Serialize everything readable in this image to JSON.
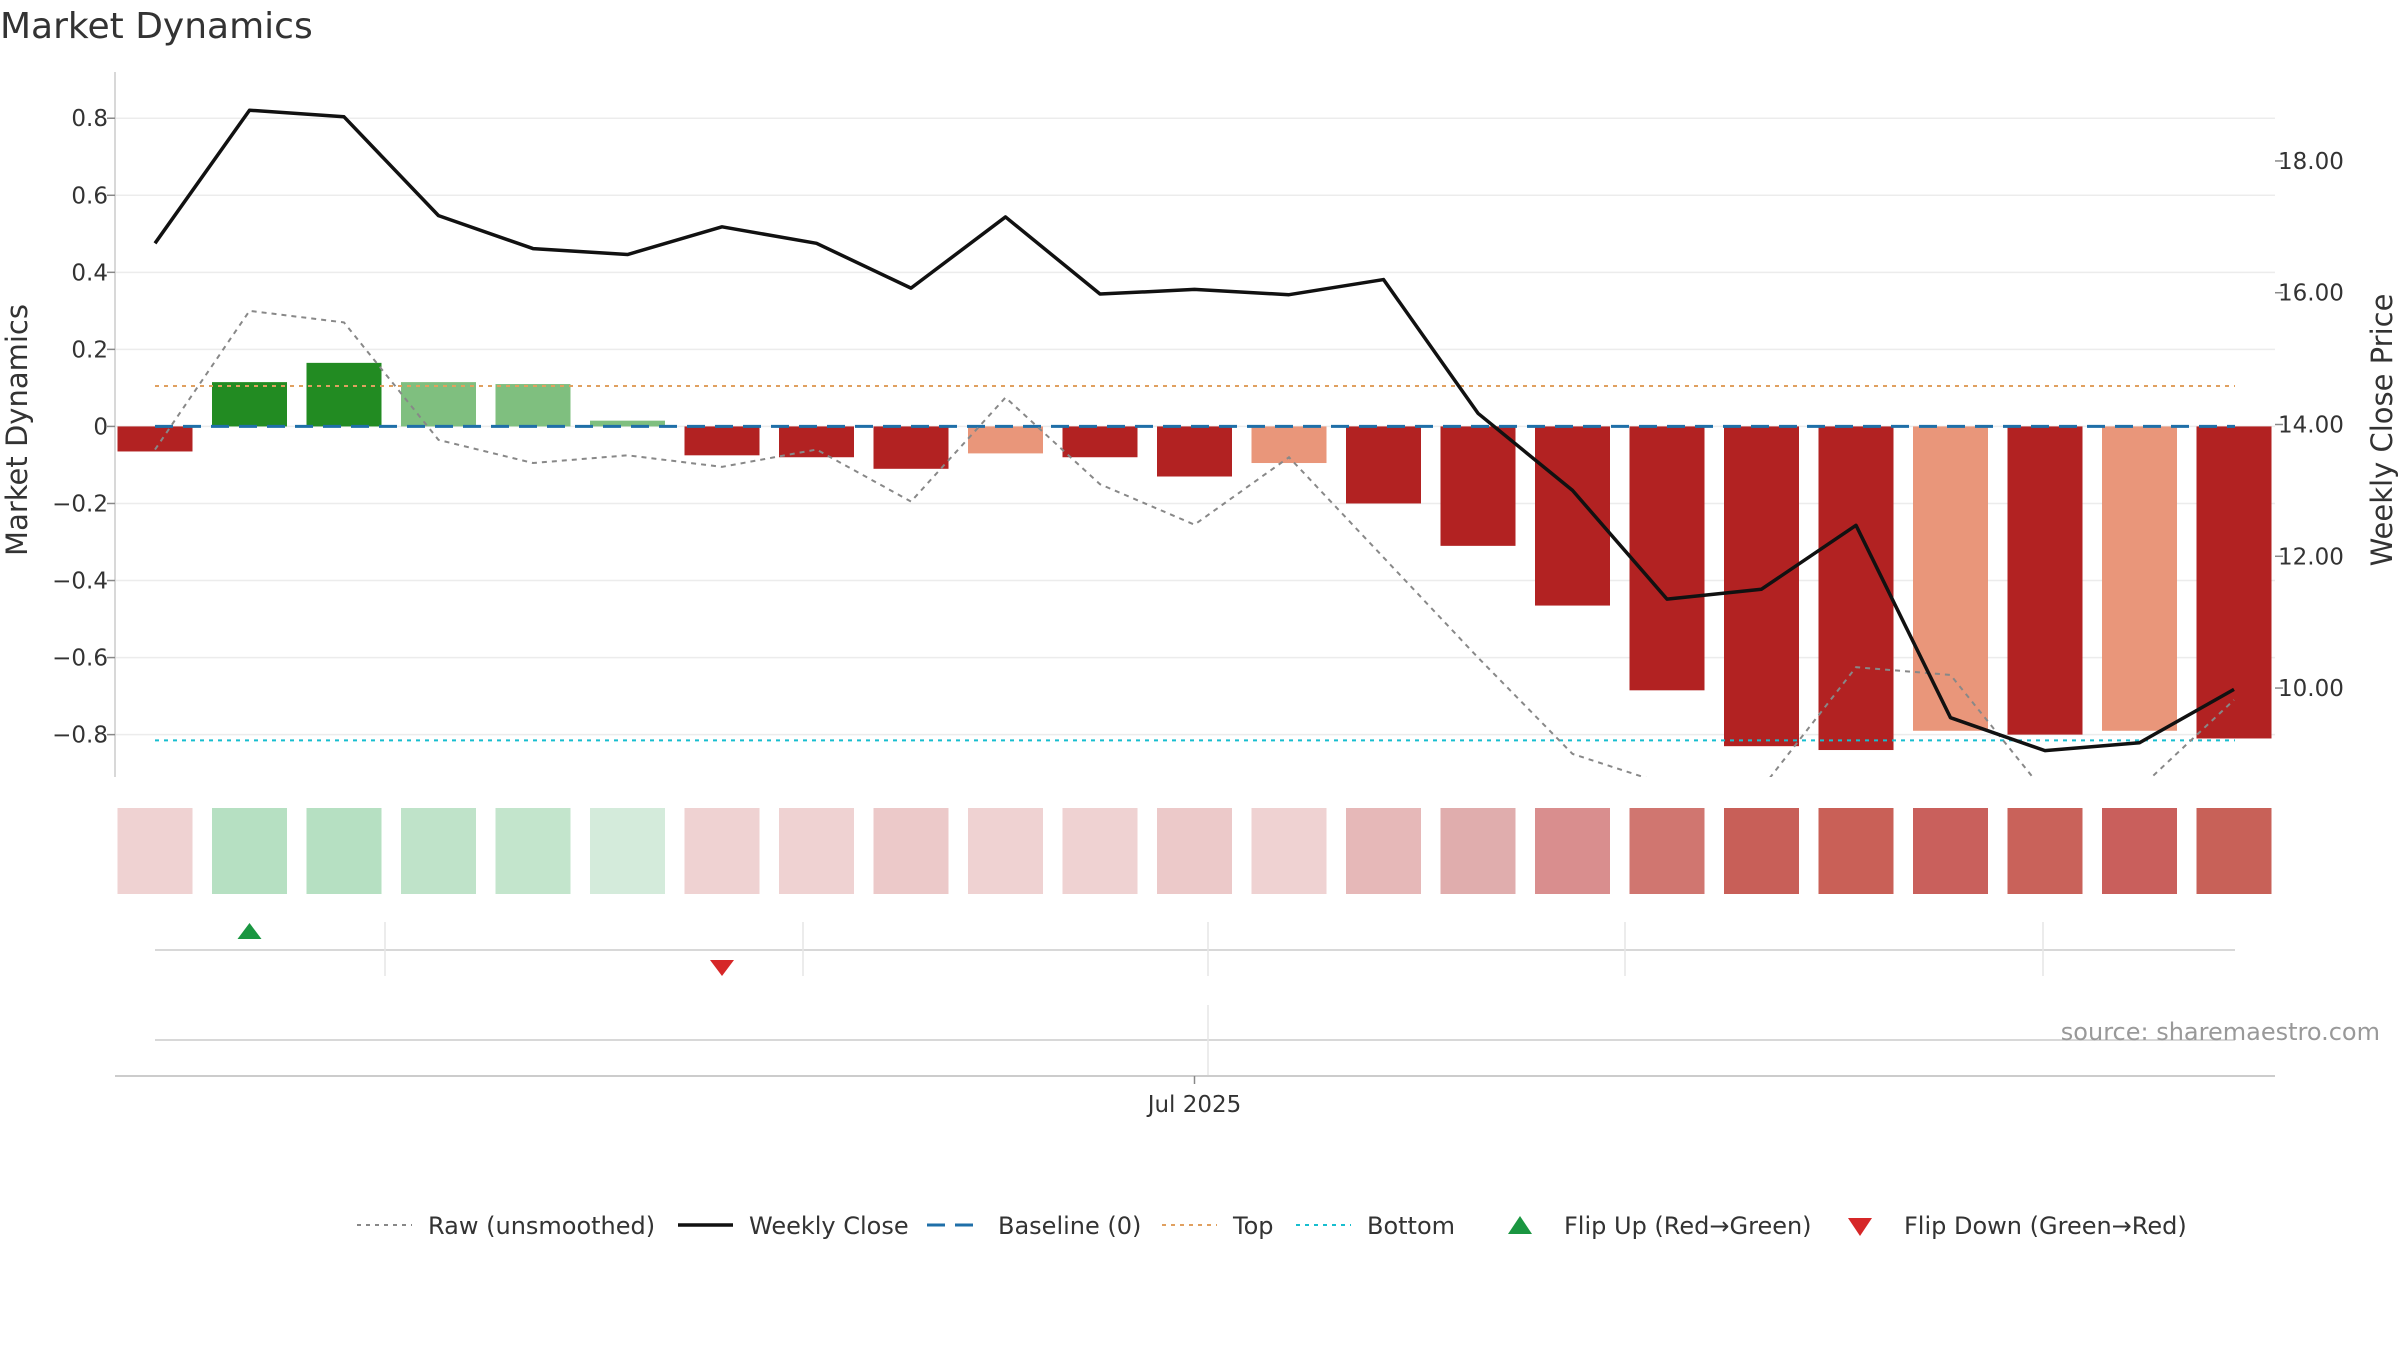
{
  "title": "Market Dynamics",
  "source_text": "source: sharemaestro.com",
  "colors": {
    "strong_red": "#b22222",
    "light_red": "#e9967a",
    "strong_green": "#228b22",
    "light_green": "#7fbf7f",
    "close_line": "#111111",
    "raw_line": "#888888",
    "baseline": "#1f6fa8",
    "top": "#e0a060",
    "bottom": "#17becf",
    "flip_up": "#1a9641",
    "flip_down": "#d62728"
  },
  "chart_data": {
    "type": "bar",
    "left_axis": {
      "label": "Market Dynamics",
      "range": [
        -0.91,
        0.92
      ],
      "ticks": [
        "0.8",
        "0.6",
        "0.4",
        "0.2",
        "0",
        "−0.2",
        "−0.4",
        "−0.6",
        "−0.8"
      ],
      "tick_values": [
        0.8,
        0.6,
        0.4,
        0.2,
        0,
        -0.2,
        -0.4,
        -0.6,
        -0.8
      ]
    },
    "right_axis": {
      "label": "Weekly Close Price",
      "range": [
        8.65,
        19.35
      ],
      "ticks": [
        "18.00",
        "16.00",
        "14.00",
        "12.00",
        "10.00"
      ],
      "tick_values": [
        18,
        16,
        14,
        12,
        10
      ]
    },
    "x_tick_label": "Jul 2025",
    "x_tick_index": 11,
    "bars": [
      {
        "value": -0.065,
        "color": "strong_red"
      },
      {
        "value": 0.115,
        "color": "strong_green"
      },
      {
        "value": 0.165,
        "color": "strong_green"
      },
      {
        "value": 0.115,
        "color": "light_green"
      },
      {
        "value": 0.11,
        "color": "light_green"
      },
      {
        "value": 0.015,
        "color": "light_green"
      },
      {
        "value": -0.075,
        "color": "strong_red"
      },
      {
        "value": -0.08,
        "color": "strong_red"
      },
      {
        "value": -0.11,
        "color": "strong_red"
      },
      {
        "value": -0.07,
        "color": "light_red"
      },
      {
        "value": -0.08,
        "color": "strong_red"
      },
      {
        "value": -0.13,
        "color": "strong_red"
      },
      {
        "value": -0.095,
        "color": "light_red"
      },
      {
        "value": -0.2,
        "color": "strong_red"
      },
      {
        "value": -0.31,
        "color": "strong_red"
      },
      {
        "value": -0.465,
        "color": "strong_red"
      },
      {
        "value": -0.685,
        "color": "strong_red"
      },
      {
        "value": -0.83,
        "color": "strong_red"
      },
      {
        "value": -0.84,
        "color": "strong_red"
      },
      {
        "value": -0.79,
        "color": "light_red"
      },
      {
        "value": -0.8,
        "color": "strong_red"
      },
      {
        "value": -0.79,
        "color": "light_red"
      },
      {
        "value": -0.81,
        "color": "strong_red"
      }
    ],
    "raw": [
      -0.06,
      0.3,
      0.27,
      -0.035,
      -0.095,
      -0.075,
      -0.105,
      -0.06,
      -0.195,
      0.075,
      -0.15,
      -0.255,
      -0.08,
      -0.34,
      -0.6,
      -0.85,
      -0.93,
      -0.94,
      -0.625,
      -0.645,
      -0.95,
      -0.94,
      -0.71
    ],
    "weekly_close": [
      16.75,
      18.77,
      18.67,
      17.17,
      16.67,
      16.58,
      17.0,
      16.75,
      16.07,
      17.15,
      15.98,
      16.05,
      15.97,
      16.2,
      14.17,
      13.0,
      11.35,
      11.5,
      12.47,
      9.55,
      9.05,
      9.17,
      9.98
    ],
    "top_line": 0.105,
    "bottom_line": -0.815,
    "baseline": 0,
    "heat_strip": [
      "#efd2d2",
      "#b6e0c2",
      "#b6e0c2",
      "#bfe3c9",
      "#c3e5cc",
      "#d4ebdb",
      "#efd2d2",
      "#efd2d2",
      "#ecc9c9",
      "#efd2d2",
      "#efd2d2",
      "#ecc9c9",
      "#efd2d2",
      "#e6b8b8",
      "#e0adad",
      "#d98e8e",
      "#d07670",
      "#c85f58",
      "#c96057",
      "#c9605c",
      "#c9625a",
      "#c95f5c",
      "#c86158"
    ],
    "flip_up_index": 1,
    "flip_down_index": 6
  },
  "legend": [
    {
      "label": "Raw (unsmoothed)",
      "kind": "dotted",
      "color": "raw_line"
    },
    {
      "label": "Weekly Close",
      "kind": "solid",
      "color": "close_line"
    },
    {
      "label": "Baseline (0)",
      "kind": "dashed",
      "color": "baseline"
    },
    {
      "label": "Top",
      "kind": "dotted",
      "color": "top"
    },
    {
      "label": "Bottom",
      "kind": "dotted",
      "color": "bottom"
    },
    {
      "label": "Flip Up (Red→Green)",
      "kind": "triangle-up",
      "color": "flip_up"
    },
    {
      "label": "Flip Down (Green→Red)",
      "kind": "triangle-down",
      "color": "flip_down"
    }
  ]
}
